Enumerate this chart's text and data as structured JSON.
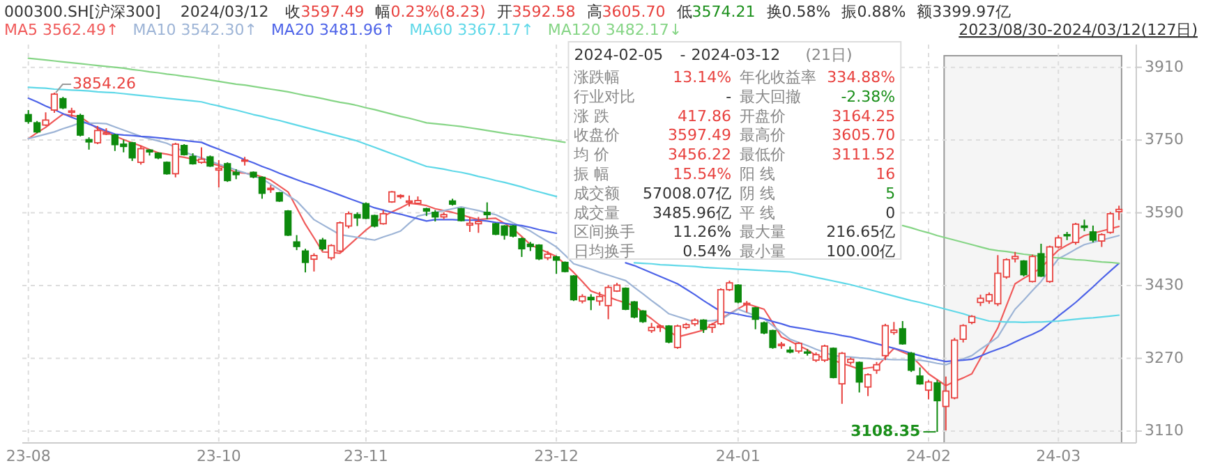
{
  "chart_data": {
    "type": "candlestick",
    "categories": [
      "23-08",
      null,
      null,
      null,
      null,
      null,
      null,
      null,
      null,
      null,
      null,
      null,
      null,
      null,
      null,
      null,
      null,
      null,
      null,
      null,
      null,
      null,
      "23-10",
      null,
      null,
      null,
      null,
      null,
      null,
      null,
      null,
      null,
      null,
      null,
      null,
      null,
      null,
      null,
      null,
      "23-11",
      null,
      null,
      null,
      null,
      null,
      null,
      null,
      null,
      null,
      null,
      null,
      null,
      null,
      null,
      null,
      null,
      null,
      null,
      null,
      null,
      null,
      "23-12",
      null,
      null,
      null,
      null,
      null,
      null,
      null,
      null,
      null,
      null,
      null,
      null,
      null,
      null,
      null,
      null,
      null,
      null,
      null,
      null,
      "24-01",
      null,
      null,
      null,
      null,
      null,
      null,
      null,
      null,
      null,
      null,
      null,
      null,
      null,
      null,
      null,
      null,
      null,
      null,
      null,
      null,
      null,
      "24-02",
      null,
      null,
      null,
      null,
      null,
      null,
      null,
      null,
      null,
      null,
      null,
      null,
      null,
      null,
      "24-03",
      null,
      null,
      null,
      null,
      null,
      null,
      null
    ],
    "ohlc": [
      [
        3806,
        3816,
        3786,
        3791
      ],
      [
        3788,
        3792,
        3765,
        3768
      ],
      [
        3783,
        3811,
        3781,
        3794
      ],
      [
        3816,
        3854.26,
        3810,
        3851
      ],
      [
        3841,
        3845,
        3818,
        3821
      ],
      [
        3811,
        3821,
        3801,
        3814
      ],
      [
        3804,
        3808,
        3758,
        3761
      ],
      [
        3751,
        3756,
        3729,
        3746
      ],
      [
        3744,
        3781,
        3741,
        3771
      ],
      [
        3763,
        3776,
        3761,
        3766
      ],
      [
        3761,
        3764,
        3726,
        3740
      ],
      [
        3741,
        3751,
        3723,
        3736
      ],
      [
        3744,
        3746,
        3704,
        3711
      ],
      [
        3701,
        3738,
        3696,
        3731
      ],
      [
        3728,
        3730,
        3716,
        3724
      ],
      [
        3721,
        3723,
        3708,
        3711
      ],
      [
        3701,
        3703,
        3674,
        3676
      ],
      [
        3676,
        3744,
        3668,
        3741
      ],
      [
        3738,
        3741,
        3716,
        3718
      ],
      [
        3714,
        3721,
        3696,
        3698
      ],
      [
        3701,
        3734,
        3698,
        3708
      ],
      [
        3713,
        3716,
        3691,
        3693
      ],
      [
        3684,
        3706,
        3646,
        3688
      ],
      [
        3698,
        3701,
        3658,
        3661
      ],
      [
        3679,
        3686,
        3664,
        3674
      ],
      [
        3704,
        3713,
        3694,
        3706
      ],
      [
        3679,
        3681,
        3666,
        3669
      ],
      [
        3668,
        3670,
        3621,
        3633
      ],
      [
        3641,
        3651,
        3634,
        3644
      ],
      [
        3634,
        3636,
        3614,
        3616
      ],
      [
        3594,
        3596,
        3539,
        3541
      ],
      [
        3526,
        3541,
        3508,
        3516
      ],
      [
        3506,
        3511,
        3459,
        3481
      ],
      [
        3488,
        3501,
        3461,
        3496
      ],
      [
        3530,
        3535,
        3507,
        3511
      ],
      [
        3491,
        3521,
        3486,
        3518
      ],
      [
        3506,
        3571,
        3503,
        3568
      ],
      [
        3561,
        3593,
        3556,
        3588
      ],
      [
        3586,
        3591,
        3561,
        3579
      ],
      [
        3610,
        3613,
        3576,
        3578
      ],
      [
        3584,
        3586,
        3558,
        3561
      ],
      [
        3566,
        3596,
        3564,
        3588
      ],
      [
        3614,
        3638,
        3612,
        3636
      ],
      [
        3626,
        3631,
        3621,
        3628
      ],
      [
        3613,
        3628,
        3604,
        3616
      ],
      [
        3611,
        3626,
        3609,
        3617
      ],
      [
        3599,
        3601,
        3583,
        3594
      ],
      [
        3591,
        3596,
        3571,
        3581
      ],
      [
        3581,
        3591,
        3576,
        3586
      ],
      [
        3616,
        3621,
        3606,
        3609
      ],
      [
        3599,
        3601,
        3571,
        3573
      ],
      [
        3563,
        3581,
        3548,
        3567
      ],
      [
        3566,
        3581,
        3546,
        3571
      ],
      [
        3591,
        3613,
        3576,
        3586
      ],
      [
        3566,
        3568,
        3541,
        3543
      ],
      [
        3561,
        3563,
        3531,
        3541
      ],
      [
        3561,
        3563,
        3536,
        3539
      ],
      [
        3533,
        3536,
        3493,
        3511
      ],
      [
        3521,
        3526,
        3506,
        3516
      ],
      [
        3519,
        3521,
        3486,
        3489
      ],
      [
        3491,
        3506,
        3486,
        3499
      ],
      [
        3493,
        3496,
        3456,
        3486
      ],
      [
        3481,
        3483,
        3459,
        3461
      ],
      [
        3451,
        3453,
        3396,
        3399
      ],
      [
        3396,
        3411,
        3391,
        3406
      ],
      [
        3404,
        3411,
        3376,
        3399
      ],
      [
        3396,
        3416,
        3386,
        3406
      ],
      [
        3386,
        3431,
        3356,
        3426
      ],
      [
        3418,
        3436,
        3416,
        3431
      ],
      [
        3424,
        3426,
        3376,
        3378
      ],
      [
        3394,
        3396,
        3358,
        3361
      ],
      [
        3374,
        3376,
        3348,
        3351
      ],
      [
        3331,
        3348,
        3326,
        3338
      ],
      [
        3338,
        3344,
        3328,
        3341
      ],
      [
        3341,
        3343,
        3303,
        3306
      ],
      [
        3294,
        3344,
        3291,
        3341
      ],
      [
        3338,
        3348,
        3334,
        3344
      ],
      [
        3346,
        3358,
        3341,
        3354
      ],
      [
        3354,
        3356,
        3326,
        3334
      ],
      [
        3338,
        3348,
        3326,
        3344
      ],
      [
        3346,
        3424,
        3343,
        3421
      ],
      [
        3421,
        3441,
        3418,
        3436
      ],
      [
        3431,
        3433,
        3391,
        3394
      ],
      [
        3388,
        3396,
        3371,
        3391
      ],
      [
        3381,
        3383,
        3334,
        3356
      ],
      [
        3348,
        3351,
        3323,
        3326
      ],
      [
        3331,
        3333,
        3291,
        3294
      ],
      [
        3298,
        3306,
        3291,
        3301
      ],
      [
        3288,
        3296,
        3281,
        3284
      ],
      [
        3286,
        3306,
        3281,
        3303
      ],
      [
        3284,
        3290,
        3276,
        3282
      ],
      [
        3266,
        3283,
        3262,
        3278
      ],
      [
        3266,
        3300,
        3262,
        3297
      ],
      [
        3292,
        3294,
        3226,
        3228
      ],
      [
        3214,
        3284,
        3170,
        3281
      ],
      [
        3261,
        3272,
        3256,
        3268
      ],
      [
        3261,
        3263,
        3195,
        3218
      ],
      [
        3207,
        3237,
        3187,
        3234
      ],
      [
        3244,
        3262,
        3236,
        3256
      ],
      [
        3276,
        3346,
        3266,
        3342
      ],
      [
        3327,
        3350,
        3322,
        3332
      ],
      [
        3335,
        3352,
        3300,
        3302
      ],
      [
        3281,
        3284,
        3240,
        3244
      ],
      [
        3231,
        3250,
        3212,
        3214
      ],
      [
        3200,
        3222,
        3180,
        3218
      ],
      [
        3216,
        3222,
        3108.35,
        3177
      ],
      [
        3164.25,
        3230,
        3111.52,
        3198
      ],
      [
        3183,
        3315,
        3180,
        3310
      ],
      [
        3312,
        3345,
        3305,
        3342
      ],
      [
        3349,
        3365,
        3345,
        3362
      ],
      [
        3393,
        3410,
        3385,
        3402
      ],
      [
        3396,
        3415,
        3390,
        3410
      ],
      [
        3390,
        3497,
        3385,
        3457
      ],
      [
        3449,
        3490,
        3445,
        3487
      ],
      [
        3489,
        3504,
        3481,
        3494
      ],
      [
        3484,
        3486,
        3450,
        3454
      ],
      [
        3439,
        3498,
        3437,
        3494
      ],
      [
        3500,
        3522,
        3449,
        3451
      ],
      [
        3439,
        3518,
        3436,
        3515
      ],
      [
        3515,
        3541,
        3512,
        3535
      ],
      [
        3542,
        3548,
        3530,
        3540
      ],
      [
        3525,
        3568,
        3520,
        3565
      ],
      [
        3561,
        3575,
        3550,
        3558
      ],
      [
        3548,
        3562,
        3525,
        3530
      ],
      [
        3528,
        3545,
        3515,
        3542
      ],
      [
        3547,
        3592,
        3544,
        3588
      ],
      [
        3592.58,
        3605.7,
        3574.21,
        3597.49
      ]
    ],
    "colors": [
      "#0d8a0d",
      "#0d8a0d",
      "#e8413e",
      "#e8413e",
      "#0d8a0d",
      "#e8413e",
      "#0d8a0d",
      "#0d8a0d",
      "#e8413e",
      "#e8413e",
      "#0d8a0d",
      "#0d8a0d",
      "#0d8a0d",
      "#e8413e",
      "#0d8a0d",
      "#0d8a0d",
      "#0d8a0d",
      "#e8413e",
      "#0d8a0d",
      "#0d8a0d",
      "#e8413e",
      "#0d8a0d",
      "#e8413e",
      "#0d8a0d",
      "#0d8a0d",
      "#e8413e",
      "#0d8a0d",
      "#0d8a0d",
      "#e8413e",
      "#0d8a0d",
      "#0d8a0d",
      "#0d8a0d",
      "#0d8a0d",
      "#e8413e",
      "#0d8a0d",
      "#e8413e",
      "#e8413e",
      "#e8413e",
      "#0d8a0d",
      "#0d8a0d",
      "#0d8a0d",
      "#e8413e",
      "#e8413e",
      "#e8413e",
      "#e8413e",
      "#e8413e",
      "#0d8a0d",
      "#0d8a0d",
      "#e8413e",
      "#0d8a0d",
      "#0d8a0d",
      "#e8413e",
      "#e8413e",
      "#0d8a0d",
      "#0d8a0d",
      "#0d8a0d",
      "#0d8a0d",
      "#0d8a0d",
      "#0d8a0d",
      "#0d8a0d",
      "#e8413e",
      "#0d8a0d",
      "#0d8a0d",
      "#0d8a0d",
      "#e8413e",
      "#0d8a0d",
      "#e8413e",
      "#e8413e",
      "#e8413e",
      "#0d8a0d",
      "#0d8a0d",
      "#0d8a0d",
      "#e8413e",
      "#e8413e",
      "#0d8a0d",
      "#e8413e",
      "#e8413e",
      "#e8413e",
      "#0d8a0d",
      "#e8413e",
      "#e8413e",
      "#e8413e",
      "#0d8a0d",
      "#e8413e",
      "#0d8a0d",
      "#0d8a0d",
      "#0d8a0d",
      "#e8413e",
      "#0d8a0d",
      "#e8413e",
      "#0d8a0d",
      "#e8413e",
      "#e8413e",
      "#0d8a0d",
      "#e8413e",
      "#e8413e",
      "#0d8a0d",
      "#e8413e",
      "#e8413e",
      "#e8413e",
      "#e8413e",
      "#0d8a0d",
      "#0d8a0d",
      "#0d8a0d",
      "#e8413e",
      "#0d8a0d",
      "#e8413e",
      "#e8413e",
      "#e8413e",
      "#e8413e",
      "#e8413e",
      "#e8413e",
      "#e8413e",
      "#e8413e",
      "#e8413e",
      "#0d8a0d",
      "#e8413e",
      "#0d8a0d",
      "#e8413e",
      "#e8413e",
      "#0d8a0d",
      "#e8413e",
      "#0d8a0d",
      "#0d8a0d",
      "#e8413e",
      "#e8413e",
      "#e8413e"
    ],
    "series": [
      {
        "name": "MA5 3562.49↑",
        "type": "line",
        "color": "#f05a5a",
        "values": [
          3753,
          3766,
          3778,
          3793,
          3807,
          3804,
          3801,
          3788,
          3775,
          3767,
          3759,
          3751,
          3744,
          3737,
          3729,
          3722,
          3719,
          3715,
          3712,
          3708,
          3703,
          3699,
          3694,
          3687,
          3679,
          3677,
          3675,
          3669,
          3662,
          3649,
          3636,
          3601,
          3565,
          3535,
          3504,
          3503,
          3501,
          3518,
          3535,
          3552,
          3567,
          3582,
          3592,
          3601,
          3611,
          3609,
          3606,
          3599,
          3595,
          3591,
          3586,
          3580,
          3575,
          3577,
          3578,
          3567,
          3555,
          3538,
          3520,
          3511,
          3503,
          3494,
          3477,
          3459,
          3439,
          3418,
          3411,
          3405,
          3398,
          3392,
          3386,
          3371,
          3357,
          3342,
          3330,
          3317,
          3322,
          3327,
          3332,
          3345,
          3357,
          3368,
          3379,
          3390,
          3384,
          3378,
          3348,
          3317,
          3308,
          3298,
          3289,
          3276,
          3271,
          3266,
          3259,
          3253,
          3246,
          3249,
          3251,
          3272,
          3292,
          3284,
          3276,
          3256,
          3236,
          3223,
          3210,
          3219,
          3227,
          3236,
          3270,
          3303,
          3337,
          3386,
          3434,
          3446,
          3457,
          3469,
          3489,
          3508,
          3519,
          3529,
          3540,
          3545,
          3550,
          3555,
          3560
        ]
      },
      {
        "name": "MA10 3542.30↑",
        "type": "line",
        "color": "#9db4d6",
        "values": [
          3753,
          3758,
          3763,
          3768,
          3775,
          3781,
          3788,
          3787,
          3787,
          3786,
          3779,
          3772,
          3765,
          3758,
          3753,
          3748,
          3743,
          3734,
          3724,
          3717,
          3711,
          3704,
          3697,
          3691,
          3684,
          3678,
          3671,
          3665,
          3653,
          3641,
          3628,
          3616,
          3596,
          3575,
          3564,
          3553,
          3542,
          3539,
          3536,
          3533,
          3530,
          3537,
          3543,
          3550,
          3567,
          3583,
          3587,
          3591,
          3595,
          3599,
          3603,
          3599,
          3595,
          3590,
          3586,
          3577,
          3568,
          3559,
          3550,
          3538,
          3527,
          3515,
          3497,
          3478,
          3472,
          3466,
          3459,
          3453,
          3447,
          3441,
          3426,
          3412,
          3397,
          3383,
          3368,
          3362,
          3356,
          3350,
          3352,
          3353,
          3355,
          3367,
          3378,
          3371,
          3364,
          3357,
          3342,
          3327,
          3312,
          3305,
          3298,
          3290,
          3283,
          3276,
          3274,
          3273,
          3271,
          3270,
          3268,
          3268,
          3267,
          3267,
          3266,
          3266,
          3263,
          3259,
          3256,
          3263,
          3269,
          3276,
          3290,
          3303,
          3317,
          3348,
          3378,
          3398,
          3419,
          3439,
          3464,
          3489,
          3499,
          3510,
          3520,
          3525,
          3530,
          3535,
          3540
        ]
      },
      {
        "name": "MA20 3481.96↑",
        "type": "line",
        "color": "#4d63e8",
        "values": [
          3842,
          3834,
          3825,
          3817,
          3808,
          3800,
          3793,
          3785,
          3778,
          3770,
          3763,
          3761,
          3760,
          3758,
          3757,
          3755,
          3753,
          3751,
          3749,
          3747,
          3745,
          3737,
          3730,
          3722,
          3715,
          3707,
          3700,
          3692,
          3685,
          3677,
          3670,
          3663,
          3656,
          3650,
          3643,
          3636,
          3629,
          3622,
          3615,
          3608,
          3601,
          3596,
          3591,
          3587,
          3582,
          3577,
          3572,
          3575,
          3575,
          3575,
          3574,
          3574,
          3574,
          3572,
          3569,
          3567,
          3564,
          3562,
          3558,
          3553,
          3549,
          3545,
          null,
          null,
          null,
          null,
          null,
          null,
          null,
          3480,
          3474,
          3466,
          3458,
          3450,
          3442,
          3434,
          3422,
          3410,
          3397,
          3385,
          3373,
          3370,
          3367,
          3363,
          3360,
          3357,
          3351,
          3346,
          3340,
          3337,
          3334,
          3330,
          3327,
          3324,
          3320,
          3317,
          3312,
          3307,
          3302,
          3297,
          3292,
          3287,
          3281,
          3276,
          3271,
          3267,
          3263,
          3265,
          3266,
          3268,
          3275,
          3283,
          3290,
          3297,
          3306,
          3315,
          3323,
          3332,
          3347,
          3363,
          3378,
          3393,
          3410,
          3427,
          3445,
          3462,
          3479
        ]
      },
      {
        "name": "MA60 3367.17↑",
        "type": "line",
        "color": "#5fd8e8",
        "values": [
          3866,
          3865,
          3864,
          3862,
          3861,
          3860,
          3859,
          3858,
          3856,
          3855,
          3854,
          3852,
          3850,
          3848,
          3846,
          3844,
          3842,
          3840,
          3838,
          3836,
          3834,
          3829,
          3825,
          3820,
          3816,
          3811,
          3806,
          3802,
          3797,
          3793,
          3788,
          3783,
          3778,
          3773,
          3768,
          3763,
          3758,
          3753,
          3748,
          3741,
          3734,
          3727,
          3720,
          3713,
          3706,
          3699,
          3692,
          3689,
          3686,
          3682,
          3679,
          3675,
          3670,
          3666,
          3661,
          3657,
          3652,
          3647,
          3641,
          3636,
          3631,
          3626,
          null,
          null,
          null,
          null,
          null,
          null,
          null,
          null,
          3480,
          3479,
          3478,
          3476,
          3475,
          3474,
          3473,
          3472,
          3470,
          3469,
          3468,
          3467,
          3466,
          3465,
          3464,
          3463,
          3462,
          3461,
          3460,
          3456,
          3452,
          3448,
          3444,
          3440,
          3436,
          3432,
          3427,
          3422,
          3417,
          3412,
          3407,
          3402,
          3397,
          3393,
          3388,
          3383,
          3378,
          3373,
          3368,
          3362,
          3357,
          3352,
          3351,
          3350,
          3350,
          3349,
          3350,
          3350,
          3351,
          3352,
          3354,
          3356,
          3358,
          3359,
          3361,
          3363,
          3365
        ]
      },
      {
        "name": "MA120 3482.17↓",
        "type": "line",
        "color": "#86d586",
        "values": [
          3930,
          3928,
          3926,
          3924,
          3922,
          3920,
          3918,
          3916,
          3914,
          3912,
          3910,
          3908,
          3905,
          3903,
          3900,
          3898,
          3895,
          3893,
          3890,
          3888,
          3885,
          3882,
          3879,
          3876,
          3873,
          3871,
          3868,
          3865,
          3862,
          3859,
          3856,
          3852,
          3848,
          3845,
          3841,
          3837,
          3833,
          3830,
          3826,
          3821,
          3817,
          3812,
          3807,
          3802,
          3798,
          3793,
          3788,
          3786,
          3784,
          3782,
          3780,
          3777,
          3774,
          3771,
          3768,
          3765,
          3762,
          3760,
          3757,
          3754,
          3751,
          3748,
          3745,
          null,
          null,
          null,
          null,
          null,
          null,
          null,
          null,
          null,
          null,
          null,
          null,
          null,
          null,
          null,
          null,
          null,
          null,
          null,
          null,
          null,
          null,
          null,
          null,
          null,
          null,
          null,
          null,
          null,
          null,
          null,
          null,
          null,
          null,
          null,
          null,
          null,
          null,
          3562,
          3557,
          3551,
          3546,
          3540,
          3535,
          3530,
          3525,
          3520,
          3515,
          3510,
          3507,
          3505,
          3502,
          3499,
          3497,
          3494,
          3492,
          3491,
          3489,
          3487,
          3486,
          3484,
          3482,
          3481,
          3479
        ]
      }
    ],
    "ylim": [
      3084,
      3960
    ],
    "yticks": [
      3110,
      3270,
      3430,
      3590,
      3750,
      3910
    ],
    "grid": true,
    "legend": "top left",
    "annotations": [
      "000300.SH[沪深300]",
      "2024/03/12",
      "收",
      "3597.49",
      "幅",
      "0.23%(8.23)",
      "开",
      "3592.58",
      "高",
      "3605.70",
      "低",
      "3574.21",
      "换0.58%",
      "振0.88%",
      "额3399.97亿",
      "2023/08/30-2024/03/12(127日)",
      "2024-02-05",
      "-",
      "2024-03-12",
      "(21日)",
      "涨跌幅",
      "13.14%",
      "年化收益率",
      "334.88%",
      "行业对比",
      "-",
      "最大回撤",
      "-2.38%",
      "涨 跌",
      "417.86",
      "开盘价",
      "3164.25",
      "收盘价",
      "3597.49",
      "最高价",
      "3605.70",
      "均 价",
      "3456.22",
      "最低价",
      "3111.52",
      "振 幅",
      "15.54%",
      "阳 线",
      "16",
      "成交额",
      "57008.07亿",
      "阴 线",
      "5",
      "成交量",
      "3485.96亿",
      "平 线",
      "0",
      "区间换手",
      "11.26%",
      "最大量",
      "216.65亿",
      "日均换手",
      "0.54%",
      "最小量",
      "100.00亿",
      "3854.26",
      "3108.35"
    ]
  }
}
